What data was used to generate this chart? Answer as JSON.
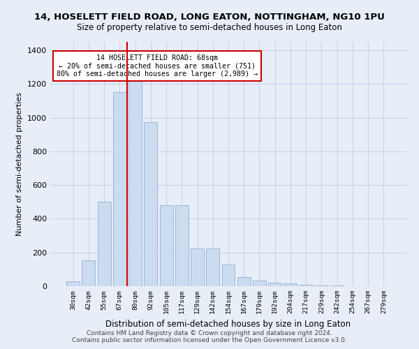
{
  "title1": "14, HOSELETT FIELD ROAD, LONG EATON, NOTTINGHAM, NG10 1PU",
  "title2": "Size of property relative to semi-detached houses in Long Eaton",
  "xlabel": "Distribution of semi-detached houses by size in Long Eaton",
  "ylabel": "Number of semi-detached properties",
  "footer1": "Contains HM Land Registry data © Crown copyright and database right 2024.",
  "footer2": "Contains public sector information licensed under the Open Government Licence v3.0.",
  "annotation_line1": "14 HOSELETT FIELD ROAD: 68sqm",
  "annotation_line2": "← 20% of semi-detached houses are smaller (751)",
  "annotation_line3": "80% of semi-detached houses are larger (2,989) →",
  "bar_labels": [
    "30sqm",
    "42sqm",
    "55sqm",
    "67sqm",
    "80sqm",
    "92sqm",
    "105sqm",
    "117sqm",
    "129sqm",
    "142sqm",
    "154sqm",
    "167sqm",
    "179sqm",
    "192sqm",
    "204sqm",
    "217sqm",
    "229sqm",
    "242sqm",
    "254sqm",
    "267sqm",
    "279sqm"
  ],
  "bar_values": [
    30,
    155,
    500,
    1150,
    1300,
    975,
    480,
    480,
    225,
    225,
    130,
    55,
    35,
    20,
    15,
    10,
    5,
    3,
    2,
    1,
    0
  ],
  "bar_color": "#ccdcf0",
  "bar_edge_color": "#93afd4",
  "vline_color": "#cc0000",
  "grid_color": "#c8d4e8",
  "background_color": "#e8eef8",
  "ylim": [
    0,
    1450
  ],
  "yticks": [
    0,
    200,
    400,
    600,
    800,
    1000,
    1200,
    1400
  ],
  "vline_x_index": 3.5
}
